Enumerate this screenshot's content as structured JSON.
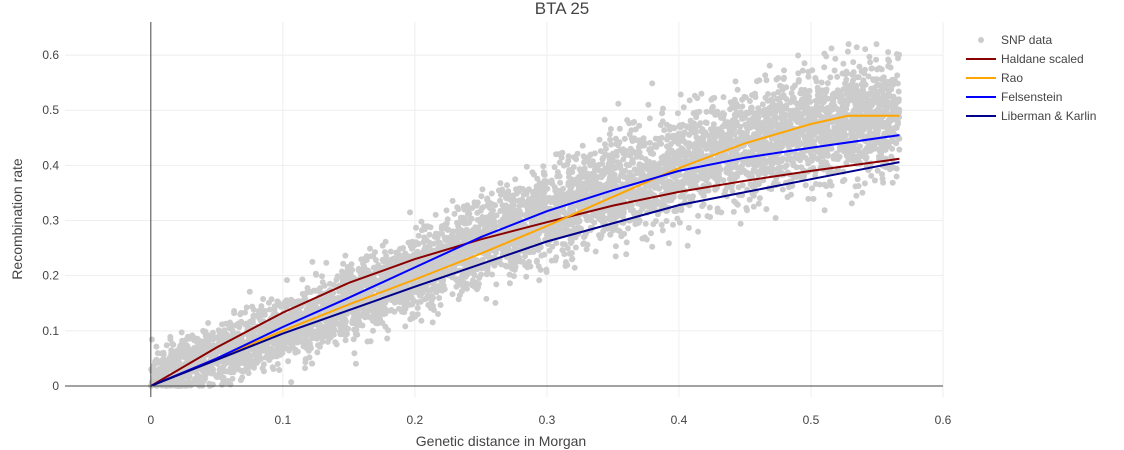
{
  "chart_data": {
    "type": "scatter",
    "title": "BTA 25",
    "xlabel": "Genetic distance in Morgan",
    "ylabel": "Recombination rate",
    "xlim": [
      -0.065,
      0.6
    ],
    "ylim": [
      -0.02,
      0.66
    ],
    "xticks": [
      0,
      0.1,
      0.2,
      0.3,
      0.4,
      0.5,
      0.6
    ],
    "xtick_labels": [
      "0",
      "0.1",
      "0.2",
      "0.3",
      "0.4",
      "0.5",
      "0.6"
    ],
    "yticks": [
      0,
      0.1,
      0.2,
      0.3,
      0.4,
      0.5,
      0.6
    ],
    "ytick_labels": [
      "0",
      "0.1",
      "0.2",
      "0.3",
      "0.4",
      "0.5",
      "0.6"
    ],
    "grid": true,
    "legend_position": "top-right",
    "scatter_series": {
      "name": "SNP data",
      "color": "#cccccc",
      "x_range": [
        0,
        0.567
      ],
      "trend": [
        [
          0,
          0.01
        ],
        [
          0.1,
          0.1
        ],
        [
          0.2,
          0.2
        ],
        [
          0.3,
          0.31
        ],
        [
          0.4,
          0.4
        ],
        [
          0.5,
          0.47
        ],
        [
          0.567,
          0.49
        ]
      ],
      "spread": 0.045,
      "approx_point_count": 6000
    },
    "series": [
      {
        "name": "Haldane scaled",
        "color": "#8b0000",
        "x": [
          0,
          0.05,
          0.1,
          0.15,
          0.2,
          0.25,
          0.3,
          0.35,
          0.4,
          0.45,
          0.5,
          0.567
        ],
        "y": [
          0,
          0.07,
          0.133,
          0.187,
          0.23,
          0.266,
          0.297,
          0.327,
          0.352,
          0.372,
          0.39,
          0.412
        ]
      },
      {
        "name": "Rao",
        "color": "#ffa500",
        "x": [
          0,
          0.05,
          0.1,
          0.15,
          0.2,
          0.25,
          0.3,
          0.35,
          0.4,
          0.45,
          0.5,
          0.528,
          0.567
        ],
        "y": [
          0,
          0.05,
          0.1,
          0.148,
          0.193,
          0.24,
          0.29,
          0.343,
          0.395,
          0.44,
          0.475,
          0.49,
          0.49
        ]
      },
      {
        "name": "Felsenstein",
        "color": "#0000ff",
        "x": [
          0,
          0.05,
          0.1,
          0.15,
          0.2,
          0.25,
          0.3,
          0.35,
          0.4,
          0.45,
          0.5,
          0.567
        ],
        "y": [
          0,
          0.05,
          0.107,
          0.16,
          0.215,
          0.27,
          0.317,
          0.355,
          0.39,
          0.414,
          0.432,
          0.455
        ]
      },
      {
        "name": "Liberman & Karlin",
        "color": "#00008b",
        "x": [
          0,
          0.1,
          0.2,
          0.3,
          0.4,
          0.5,
          0.567
        ],
        "y": [
          0,
          0.095,
          0.18,
          0.262,
          0.328,
          0.375,
          0.406
        ]
      }
    ]
  }
}
